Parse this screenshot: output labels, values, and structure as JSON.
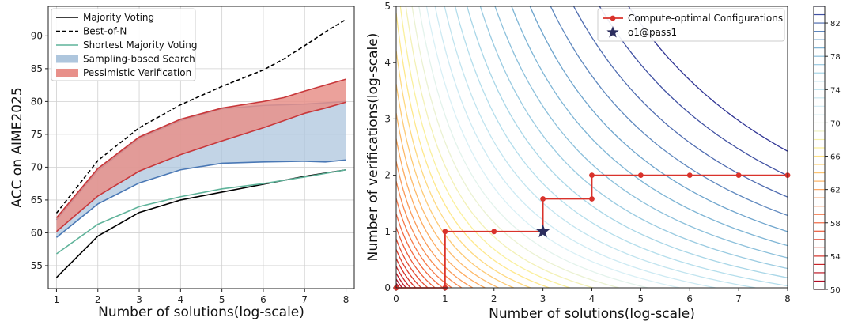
{
  "chart_data": [
    {
      "type": "line",
      "xlabel": "Number of solutions(log-scale)",
      "ylabel": "ACC on AIME2025",
      "xlim": [
        0.8,
        8.2
      ],
      "ylim": [
        51.5,
        94.5
      ],
      "xticks": [
        "1",
        "2",
        "3",
        "4",
        "5",
        "6",
        "7",
        "8"
      ],
      "yticks": [
        "55",
        "60",
        "65",
        "70",
        "75",
        "80",
        "85",
        "90"
      ],
      "grid": true,
      "legend_position": "top-left",
      "series": [
        {
          "name": "Majority Voting",
          "color": "#000000",
          "style": "solid",
          "x": [
            1,
            2,
            3,
            4,
            5,
            6,
            7,
            8
          ],
          "values": [
            53.2,
            59.5,
            63.1,
            65.0,
            66.2,
            67.4,
            68.6,
            69.6
          ]
        },
        {
          "name": "Best-of-N",
          "color": "#000000",
          "style": "dashed",
          "x": [
            1,
            2,
            3,
            4,
            5,
            6,
            6.5,
            7,
            7.5,
            8
          ],
          "values": [
            63.0,
            71.0,
            76.0,
            79.5,
            82.3,
            84.8,
            86.5,
            88.5,
            90.6,
            92.5
          ]
        },
        {
          "name": "Shortest Majority Voting",
          "color": "#5fb39a",
          "style": "solid",
          "x": [
            1,
            2,
            3,
            4,
            5,
            6,
            7,
            8
          ],
          "values": [
            56.8,
            61.3,
            64.0,
            65.5,
            66.7,
            67.5,
            68.5,
            69.6
          ]
        }
      ],
      "bands": [
        {
          "name": "Sampling-based Search",
          "color": "#aec6dd",
          "edge": "#4a78b5",
          "x": [
            1,
            2,
            3,
            4,
            5,
            6,
            7,
            7.5,
            8
          ],
          "upper": [
            62.0,
            69.5,
            74.4,
            77.1,
            78.9,
            79.4,
            79.6,
            79.8,
            80.0
          ],
          "lower": [
            59.3,
            64.4,
            67.6,
            69.6,
            70.6,
            70.8,
            70.9,
            70.8,
            71.1
          ]
        },
        {
          "name": "Pessimistic Verification",
          "color": "#e8908a",
          "edge": "#c8383b",
          "x": [
            1,
            2,
            3,
            4,
            5,
            6,
            6.5,
            7,
            7.5,
            8
          ],
          "upper": [
            62.3,
            69.8,
            74.6,
            77.3,
            79.0,
            80.0,
            80.6,
            81.6,
            82.5,
            83.4
          ],
          "lower": [
            60.2,
            65.6,
            69.4,
            71.9,
            74.0,
            76.0,
            77.1,
            78.2,
            79.0,
            79.9
          ]
        }
      ]
    },
    {
      "type": "contour",
      "xlabel": "Number of solutions(log-scale)",
      "ylabel": "Number of verifications(log-scale)",
      "xlim": [
        0,
        8
      ],
      "ylim": [
        0,
        5
      ],
      "xticks": [
        "0",
        "1",
        "2",
        "3",
        "4",
        "5",
        "6",
        "7",
        "8"
      ],
      "yticks": [
        "0",
        "1",
        "2",
        "3",
        "4",
        "5"
      ],
      "legend_position": "top-right",
      "colorbar": {
        "min": 50,
        "max": 84,
        "ticks": [
          "50",
          "54",
          "58",
          "62",
          "66",
          "70",
          "74",
          "78",
          "82"
        ]
      },
      "series": [
        {
          "name": "Compute-optimal Configurations",
          "color": "#d9322b",
          "marker": "circle",
          "x": [
            0,
            1,
            1,
            2,
            3,
            3,
            4,
            4,
            5,
            6,
            7,
            8
          ],
          "values": [
            0,
            0,
            1,
            1,
            1,
            1.58,
            1.58,
            2,
            2,
            2,
            2,
            2
          ]
        },
        {
          "name": "o1@pass1",
          "color": "#2b2d5e",
          "marker": "star",
          "x": [
            3
          ],
          "values": [
            1
          ]
        }
      ]
    }
  ]
}
